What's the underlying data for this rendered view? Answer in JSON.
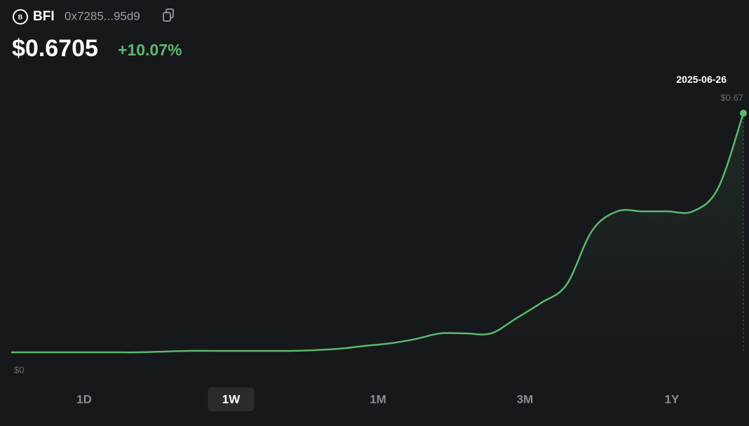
{
  "token": {
    "icon_letter": "B",
    "symbol": "BFI",
    "address": "0x7285...95d9",
    "price": "$0.6705",
    "change": "+10.07%"
  },
  "chart_data": {
    "type": "line",
    "categories": [
      null,
      null,
      null,
      null,
      null,
      null,
      null,
      null,
      null,
      null,
      null,
      null,
      null,
      null,
      null,
      null,
      null,
      null,
      null,
      null,
      null,
      null,
      null,
      null,
      null,
      null,
      null,
      null,
      null,
      "2025-06-26"
    ],
    "values": [
      0,
      0,
      0,
      0,
      0,
      0,
      0.002,
      0.004,
      0.004,
      0.004,
      0.004,
      0.004,
      0.006,
      0.01,
      0.018,
      0.025,
      0.037,
      0.053,
      0.053,
      0.053,
      0.095,
      0.139,
      0.19,
      0.34,
      0.395,
      0.395,
      0.395,
      0.395,
      0.46,
      0.67
    ],
    "value_labels": [
      null,
      null,
      null,
      null,
      null,
      null,
      null,
      null,
      null,
      null,
      null,
      null,
      null,
      null,
      null,
      null,
      null,
      null,
      null,
      null,
      null,
      null,
      null,
      null,
      null,
      null,
      null,
      null,
      null,
      "$0.67"
    ],
    "color": "#5cb86e",
    "ylim": [
      0,
      0.7
    ],
    "yticks": [
      {
        "value": 0,
        "label": "$0"
      }
    ]
  },
  "timeframes": {
    "options": [
      "1D",
      "1W",
      "1M",
      "3M",
      "1Y"
    ],
    "selected": 1
  }
}
